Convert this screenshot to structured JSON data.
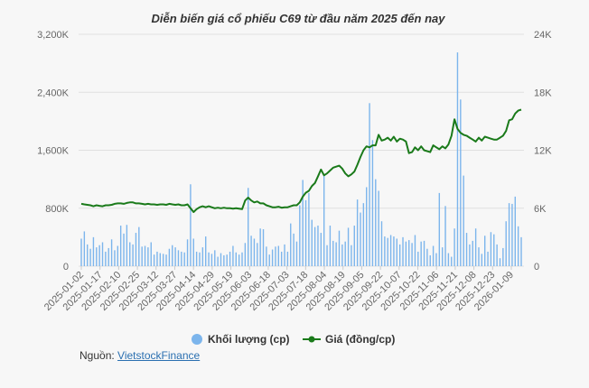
{
  "chart_data": {
    "type": "bar+line",
    "title": "Diễn biến giá cổ phiếu C69 từ đầu năm 2025 đến nay",
    "x_tick_labels": [
      "2025-01-02",
      "2025-01-17",
      "2025-02-10",
      "2025-02-25",
      "2025-03-12",
      "2025-03-27",
      "2025-04-14",
      "2025-04-29",
      "2025-05-19",
      "2025-06-03",
      "2025-06-18",
      "2025-07-03",
      "2025-07-18",
      "2025-08-04",
      "2025-08-19",
      "2025-09-05",
      "2025-09-22",
      "2025-10-07",
      "2025-10-22",
      "2025-11-06",
      "2025-11-21",
      "2025-12-08",
      "2025-12-23",
      "2026-01-09"
    ],
    "y_left": {
      "ticks": [
        "0",
        "800K",
        "1,600K",
        "2,400K",
        "3,200K"
      ],
      "range": [
        0,
        3200
      ],
      "unit": "K"
    },
    "y_right": {
      "ticks": [
        "0",
        "6K",
        "12K",
        "18K",
        "24K"
      ],
      "range": [
        0,
        24
      ],
      "unit": "K"
    },
    "grid": true,
    "legend_position": "bottom",
    "series": [
      {
        "name": "Khối lượng (cp)",
        "type": "bar",
        "color": "#7cb5ec",
        "values": [
          380,
          480,
          300,
          240,
          400,
          260,
          290,
          330,
          200,
          250,
          370,
          220,
          280,
          560,
          450,
          570,
          330,
          300,
          460,
          540,
          270,
          280,
          260,
          330,
          160,
          200,
          180,
          170,
          160,
          240,
          290,
          260,
          220,
          200,
          190,
          370,
          1130,
          380,
          200,
          190,
          260,
          410,
          190,
          170,
          220,
          130,
          180,
          150,
          160,
          200,
          280,
          190,
          160,
          190,
          320,
          1080,
          420,
          380,
          320,
          520,
          510,
          270,
          160,
          230,
          270,
          280,
          200,
          300,
          200,
          590,
          450,
          340,
          840,
          1190,
          910,
          1010,
          640,
          540,
          560,
          460,
          1250,
          290,
          560,
          350,
          330,
          490,
          300,
          340,
          530,
          290,
          560,
          920,
          740,
          870,
          1090,
          2250,
          1740,
          1200,
          1040,
          620,
          410,
          390,
          430,
          410,
          380,
          300,
          400,
          340,
          360,
          320,
          430,
          200,
          340,
          350,
          240,
          150,
          280,
          180,
          1010,
          260,
          830,
          180,
          130,
          520,
          2950,
          2300,
          1250,
          460,
          300,
          350,
          520,
          260,
          170,
          420,
          200,
          470,
          440,
          300,
          110,
          250,
          620,
          870,
          860,
          960,
          550,
          400
        ]
      },
      {
        "name": "Giá (đồng/cp)",
        "type": "line",
        "color": "#1a7a1a",
        "values": [
          6.45,
          6.4,
          6.35,
          6.3,
          6.2,
          6.3,
          6.25,
          6.2,
          6.3,
          6.3,
          6.35,
          6.45,
          6.5,
          6.5,
          6.45,
          6.55,
          6.6,
          6.6,
          6.5,
          6.5,
          6.45,
          6.4,
          6.45,
          6.4,
          6.4,
          6.35,
          6.4,
          6.4,
          6.35,
          6.45,
          6.4,
          6.35,
          6.4,
          6.3,
          6.3,
          6.4,
          6.0,
          5.6,
          5.9,
          6.1,
          6.2,
          6.1,
          6.2,
          6.1,
          6.0,
          6.05,
          6.0,
          6.05,
          6.0,
          6.0,
          5.95,
          6.0,
          5.95,
          5.9,
          6.8,
          7.1,
          6.8,
          6.6,
          6.7,
          6.5,
          6.5,
          6.3,
          6.2,
          6.1,
          6.1,
          6.15,
          6.05,
          6.1,
          6.1,
          6.2,
          6.3,
          6.3,
          6.6,
          7.2,
          7.6,
          7.8,
          8.3,
          8.6,
          9.3,
          10.0,
          9.4,
          9.6,
          9.9,
          10.2,
          10.3,
          10.4,
          10.1,
          9.6,
          9.3,
          9.5,
          9.8,
          10.5,
          11.3,
          12.0,
          12.4,
          12.3,
          12.5,
          12.5,
          13.6,
          13.0,
          13.1,
          13.3,
          13.0,
          13.4,
          12.9,
          13.2,
          13.1,
          12.9,
          11.7,
          11.8,
          12.3,
          12.0,
          12.4,
          12.0,
          11.9,
          11.8,
          12.5,
          12.3,
          12.1,
          12.4,
          12.2,
          12.6,
          13.5,
          15.2,
          14.2,
          13.8,
          13.6,
          13.5,
          13.3,
          13.1,
          12.9,
          13.3,
          13.0,
          13.4,
          13.3,
          13.2,
          13.1,
          13.1,
          13.3,
          13.5,
          14.0,
          15.1,
          15.2,
          15.8,
          16.1,
          16.2
        ]
      }
    ]
  },
  "source": {
    "label": "Nguồn:",
    "link_text": "VietstockFinance"
  }
}
